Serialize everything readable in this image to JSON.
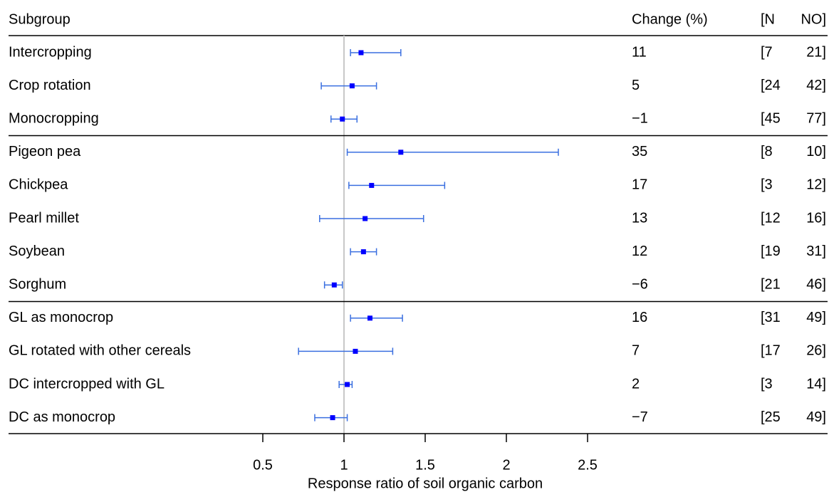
{
  "chart_data": {
    "type": "forest",
    "xlabel": "Response ratio of soil organic carbon",
    "xlim": [
      0.5,
      2.5
    ],
    "xticks": [
      0.5,
      1,
      1.5,
      2,
      2.5
    ],
    "reference_line": 1,
    "point_color": "#0000ff",
    "whisker_color": "#3a6fe0",
    "reference_color": "#c8c8c8",
    "header": [
      "Subgroup",
      "Change (%)",
      "[N",
      "NO]"
    ],
    "groups": [
      {
        "rows": [
          {
            "label": "Intercropping",
            "value": 1.105,
            "lower": 1.04,
            "upper": 1.35,
            "change": "11",
            "n": "[7",
            "no": "21]"
          },
          {
            "label": "Crop rotation",
            "value": 1.05,
            "lower": 0.86,
            "upper": 1.2,
            "change": "5",
            "n": "[24",
            "no": "42]"
          },
          {
            "label": "Monocropping",
            "value": 0.99,
            "lower": 0.92,
            "upper": 1.08,
            "change": "−1",
            "n": "[45",
            "no": "77]"
          }
        ]
      },
      {
        "rows": [
          {
            "label": "Pigeon pea",
            "value": 1.35,
            "lower": 1.02,
            "upper": 2.32,
            "change": "35",
            "n": "[8",
            "no": "10]"
          },
          {
            "label": "Chickpea",
            "value": 1.17,
            "lower": 1.03,
            "upper": 1.62,
            "change": "17",
            "n": "[3",
            "no": "12]"
          },
          {
            "label": "Pearl millet",
            "value": 1.13,
            "lower": 0.85,
            "upper": 1.49,
            "change": "13",
            "n": "[12",
            "no": "16]"
          },
          {
            "label": "Soybean",
            "value": 1.12,
            "lower": 1.04,
            "upper": 1.2,
            "change": "12",
            "n": "[19",
            "no": "31]"
          },
          {
            "label": "Sorghum",
            "value": 0.94,
            "lower": 0.88,
            "upper": 0.99,
            "change": "−6",
            "n": "[21",
            "no": "46]"
          }
        ]
      },
      {
        "rows": [
          {
            "label": "GL as monocrop",
            "value": 1.16,
            "lower": 1.04,
            "upper": 1.36,
            "change": "16",
            "n": "[31",
            "no": "49]"
          },
          {
            "label": "GL rotated with other cereals",
            "value": 1.07,
            "lower": 0.72,
            "upper": 1.3,
            "change": "7",
            "n": "[17",
            "no": "26]"
          },
          {
            "label": "DC intercropped with GL",
            "value": 1.02,
            "lower": 0.97,
            "upper": 1.05,
            "change": "2",
            "n": "[3",
            "no": "14]"
          },
          {
            "label": "DC as monocrop",
            "value": 0.93,
            "lower": 0.82,
            "upper": 1.02,
            "change": "−7",
            "n": "[25",
            "no": "49]"
          }
        ]
      }
    ]
  }
}
